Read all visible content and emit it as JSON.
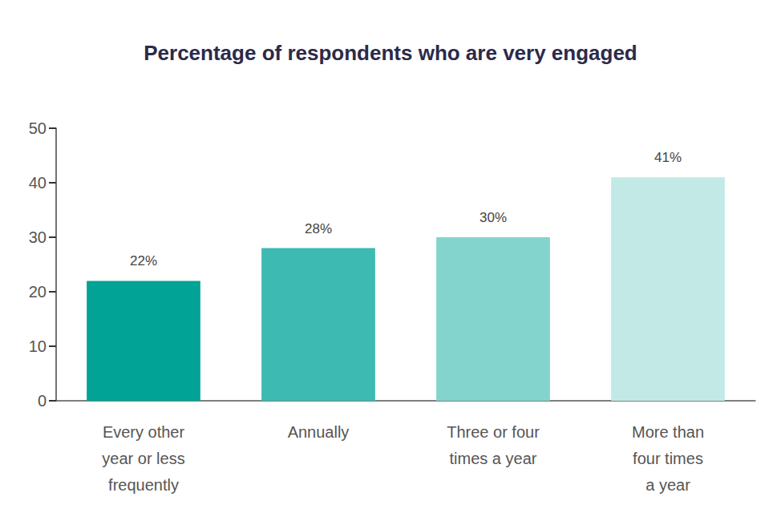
{
  "chart_data": {
    "type": "bar",
    "title": "Percentage of respondents who are very engaged",
    "categories": [
      "Every other\nyear or less\nfrequently",
      "Annually",
      "Three or four\ntimes a year",
      "More than\nfour times\na year"
    ],
    "values": [
      22,
      28,
      30,
      41
    ],
    "value_labels": [
      "22%",
      "28%",
      "30%",
      "41%"
    ],
    "colors": [
      "#00a396",
      "#3dbab1",
      "#83d4cc",
      "#c2e9e6"
    ],
    "ylim": [
      0,
      50
    ],
    "yticks": [
      0,
      10,
      20,
      30,
      40,
      50
    ],
    "grid": false,
    "data_labels": true
  }
}
